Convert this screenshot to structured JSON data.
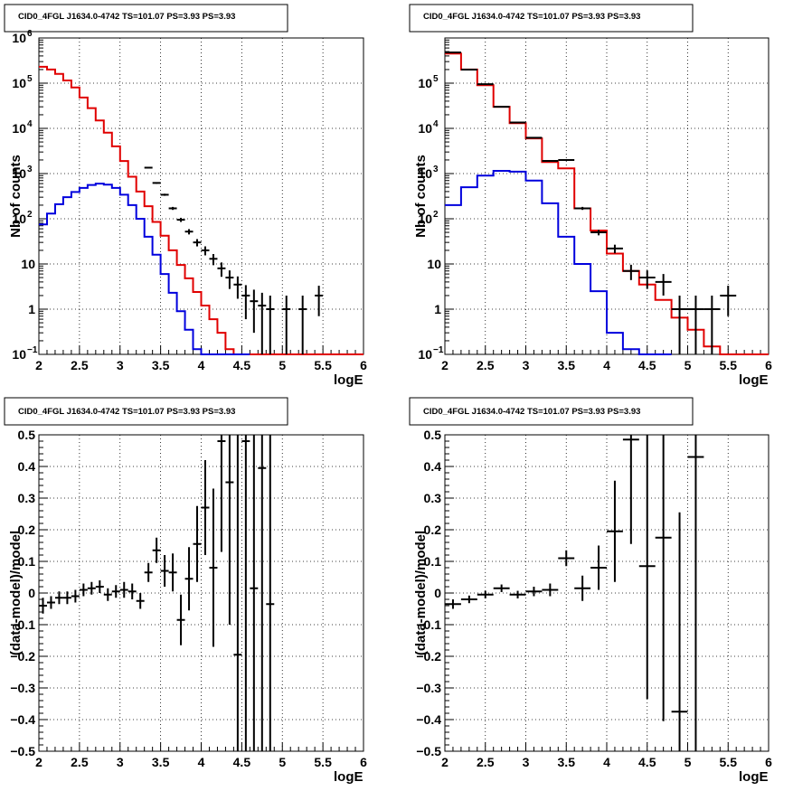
{
  "colors": {
    "data": "#000000",
    "total_model": "#e00000",
    "source_model": "#0000dd",
    "grid": "#000000"
  },
  "chart_data": [
    {
      "type": "line",
      "title": "CID0_4FGL J1634.0-4742 TS=101.07 PS=3.93 PS=3.93",
      "xlabel": "logE",
      "ylabel": "Nb of counts",
      "xlim": [
        2,
        6
      ],
      "ylim": [
        0.1,
        1000000
      ],
      "yscale": "log",
      "grid": true,
      "xticks": [
        "2",
        "2.5",
        "3",
        "3.5",
        "4",
        "4.5",
        "5",
        "5.5",
        "6"
      ],
      "ytick_labels": {
        "minus1": "−1",
        "e2": "2",
        "e3": "3",
        "e4": "4",
        "e5": "5",
        "e6": "6",
        "ten": "10",
        "one": "1"
      },
      "bin_width": 0.1,
      "series": [
        {
          "kind": "step",
          "x": [
            2.0,
            2.1,
            2.2,
            2.3,
            2.4,
            2.5,
            2.6,
            2.7,
            2.8,
            2.9,
            3.0,
            3.1,
            3.2,
            3.3,
            3.4,
            3.5,
            3.6,
            3.7,
            3.8,
            3.9,
            4.0,
            4.1,
            4.2,
            4.3,
            4.4,
            4.5,
            4.6,
            4.7,
            4.8,
            4.9,
            5.0,
            5.1,
            5.2,
            5.3,
            5.4,
            5.5,
            5.6,
            5.7,
            5.8,
            5.9
          ],
          "y": [
            230000,
            200000,
            160000,
            115000,
            80000,
            48000,
            28000,
            15000,
            8000,
            4000,
            1900,
            850,
            400,
            190,
            85,
            42,
            20,
            9.5,
            4.8,
            2.4,
            1.2,
            0.6,
            0.3,
            0.13,
            0.1,
            0.1,
            0.1,
            0.1,
            0.1,
            0.1,
            0.1,
            0.1,
            0.1,
            0.1,
            0.1,
            0.1,
            0.1,
            0.1,
            0.1,
            0.1
          ]
        },
        {
          "kind": "step",
          "x": [
            2.0,
            2.1,
            2.2,
            2.3,
            2.4,
            2.5,
            2.6,
            2.7,
            2.8,
            2.9,
            3.0,
            3.1,
            3.2,
            3.3,
            3.4,
            3.5,
            3.6,
            3.7,
            3.8,
            3.9,
            4.0,
            4.1,
            4.2,
            4.3,
            4.4,
            4.5
          ],
          "y": [
            75,
            130,
            210,
            300,
            390,
            480,
            560,
            600,
            570,
            480,
            340,
            200,
            100,
            40,
            16,
            6,
            2.3,
            0.9,
            0.35,
            0.13,
            0.05,
            0.05,
            0.05,
            0.05,
            0.05,
            0.05
          ]
        },
        {
          "kind": "errorbar",
          "x": [
            3.35,
            3.45,
            3.55,
            3.65,
            3.75,
            3.85,
            3.95,
            4.05,
            4.15,
            4.25,
            4.35,
            4.45,
            4.55,
            4.65,
            4.75,
            4.85,
            5.05,
            5.25,
            5.45
          ],
          "y": [
            1350,
            620,
            340,
            170,
            95,
            52,
            30,
            20,
            13,
            8,
            5,
            3.5,
            2,
            1.5,
            1.2,
            1,
            1,
            1,
            2
          ],
          "yerr_lo": [
            35,
            25,
            18,
            13,
            10,
            7,
            5.5,
            4.5,
            3.6,
            2.8,
            2.2,
            1.8,
            1.4,
            1.2,
            1.1,
            0.93,
            0.93,
            0.93,
            1.3
          ],
          "yerr_hi": [
            35,
            25,
            18,
            13,
            10,
            7,
            5.5,
            4.5,
            3.6,
            2.8,
            2.2,
            1.8,
            1.4,
            1.2,
            1.1,
            1.0,
            1.0,
            1.0,
            1.3
          ]
        }
      ]
    },
    {
      "type": "line",
      "title": "CID0_4FGL J1634.0-4742 TS=101.07 PS=3.93 PS=3.93",
      "xlabel": "logE",
      "ylabel": "Nb of counts",
      "xlim": [
        2,
        6
      ],
      "ylim": [
        0.1,
        1000000
      ],
      "yscale": "log",
      "grid": true,
      "xticks": [
        "2",
        "2.5",
        "3",
        "3.5",
        "4",
        "4.5",
        "5",
        "5.5",
        "6"
      ],
      "ytick_labels": {
        "minus1": "−1",
        "e2": "2",
        "e3": "3",
        "e4": "4",
        "e5": "5",
        "ten": "10",
        "one": "1"
      },
      "bin_width": 0.2,
      "series": [
        {
          "kind": "step",
          "x": [
            2.0,
            2.2,
            2.4,
            2.6,
            2.8,
            3.0,
            3.2,
            3.4,
            3.6,
            3.8,
            4.0,
            4.2,
            4.4,
            4.6,
            4.8,
            5.0,
            5.2,
            5.4,
            5.6,
            5.8
          ],
          "y": [
            450000,
            200000,
            90000,
            30000,
            13000,
            6000,
            1800,
            1300,
            170,
            55,
            17,
            7,
            3.5,
            1.6,
            0.65,
            0.35,
            0.15,
            0.1,
            0.1,
            0.1
          ]
        },
        {
          "kind": "step",
          "x": [
            2.0,
            2.2,
            2.4,
            2.6,
            2.8,
            3.0,
            3.2,
            3.4,
            3.6,
            3.8,
            4.0,
            4.2,
            4.4,
            4.6
          ],
          "y": [
            200,
            500,
            900,
            1150,
            1100,
            700,
            220,
            40,
            10,
            2.5,
            0.3,
            0.13,
            0.05,
            0.05
          ]
        },
        {
          "kind": "errorbar",
          "x": [
            2.1,
            2.3,
            2.5,
            2.7,
            2.9,
            3.1,
            3.3,
            3.5,
            3.7,
            3.9,
            4.1,
            4.3,
            4.5,
            4.7,
            4.9,
            5.1,
            5.3,
            5.5
          ],
          "y": [
            480000,
            200000,
            95000,
            30000,
            13500,
            6200,
            1900,
            2000,
            170,
            50,
            22,
            7,
            5,
            4,
            1,
            1,
            1,
            2
          ],
          "yerr_lo": [
            700,
            450,
            300,
            175,
            115,
            80,
            45,
            45,
            13,
            7,
            4.7,
            2.6,
            2.2,
            2,
            0.93,
            0.93,
            0.93,
            1.3
          ],
          "yerr_hi": [
            700,
            450,
            300,
            175,
            115,
            80,
            45,
            45,
            13,
            7,
            4.7,
            2.6,
            2.2,
            2,
            1.0,
            1.0,
            1.0,
            1.3
          ]
        }
      ]
    },
    {
      "type": "scatter",
      "title": "CID0_4FGL J1634.0-4742 TS=101.07 PS=3.93 PS=3.93",
      "xlabel": "logE",
      "ylabel": "(data-model)/model",
      "xlim": [
        2,
        6
      ],
      "ylim": [
        -0.5,
        0.5
      ],
      "grid": true,
      "xticks": [
        "2",
        "2.5",
        "3",
        "3.5",
        "4",
        "4.5",
        "5",
        "5.5",
        "6"
      ],
      "yticks": [
        "0.5",
        "0.4",
        "0.3",
        "0.2",
        "0.1",
        "0",
        "−0.1",
        "−0.2",
        "−0.3",
        "−0.4",
        "−0.5"
      ],
      "bin_width": 0.1,
      "series": [
        {
          "kind": "errorbar",
          "x": [
            2.05,
            2.15,
            2.25,
            2.35,
            2.45,
            2.55,
            2.65,
            2.75,
            2.85,
            2.95,
            3.05,
            3.15,
            3.25,
            3.35,
            3.45,
            3.55,
            3.65,
            3.75,
            3.85,
            3.95,
            4.05,
            4.15,
            4.25,
            4.35,
            4.45,
            4.55,
            4.65,
            4.75,
            4.85
          ],
          "y": [
            -0.04,
            -0.03,
            -0.015,
            -0.015,
            -0.01,
            0.01,
            0.015,
            0.02,
            -0.005,
            0.005,
            0.01,
            0.005,
            -0.025,
            0.065,
            0.135,
            0.07,
            0.065,
            -0.085,
            0.045,
            0.155,
            0.27,
            0.08,
            0.48,
            0.35,
            -0.195,
            0.48,
            0.015,
            0.395,
            -0.035
          ],
          "yerr": [
            0.025,
            0.02,
            0.02,
            0.02,
            0.02,
            0.02,
            0.02,
            0.02,
            0.02,
            0.02,
            0.025,
            0.025,
            0.025,
            0.03,
            0.04,
            0.05,
            0.06,
            0.08,
            0.1,
            0.12,
            0.15,
            0.25,
            0.35,
            0.45,
            0.8,
            1.0,
            1.0,
            1.0,
            1.0
          ]
        }
      ]
    },
    {
      "type": "scatter",
      "title": "CID0_4FGL J1634.0-4742 TS=101.07 PS=3.93 PS=3.93",
      "xlabel": "logE",
      "ylabel": "(data-model)/model",
      "xlim": [
        2,
        6
      ],
      "ylim": [
        -0.5,
        0.5
      ],
      "grid": true,
      "xticks": [
        "2",
        "2.5",
        "3",
        "3.5",
        "4",
        "4.5",
        "5",
        "5.5",
        "6"
      ],
      "yticks": [
        "0.5",
        "0.4",
        "0.3",
        "0.2",
        "0.1",
        "0",
        "−0.1",
        "−0.2",
        "−0.3",
        "−0.4",
        "−0.5"
      ],
      "bin_width": 0.2,
      "series": [
        {
          "kind": "errorbar",
          "x": [
            2.1,
            2.3,
            2.5,
            2.7,
            2.9,
            3.1,
            3.3,
            3.5,
            3.7,
            3.9,
            4.1,
            4.3,
            4.5,
            4.7,
            4.9,
            5.1
          ],
          "y": [
            -0.035,
            -0.02,
            -0.005,
            0.015,
            -0.005,
            0.005,
            0.01,
            0.11,
            0.015,
            0.08,
            0.195,
            0.485,
            0.085,
            0.175,
            -0.375,
            0.43
          ],
          "yerr": [
            0.015,
            0.012,
            0.012,
            0.012,
            0.012,
            0.015,
            0.02,
            0.025,
            0.04,
            0.07,
            0.16,
            0.33,
            0.42,
            0.58,
            0.63,
            1.0
          ]
        }
      ]
    }
  ]
}
